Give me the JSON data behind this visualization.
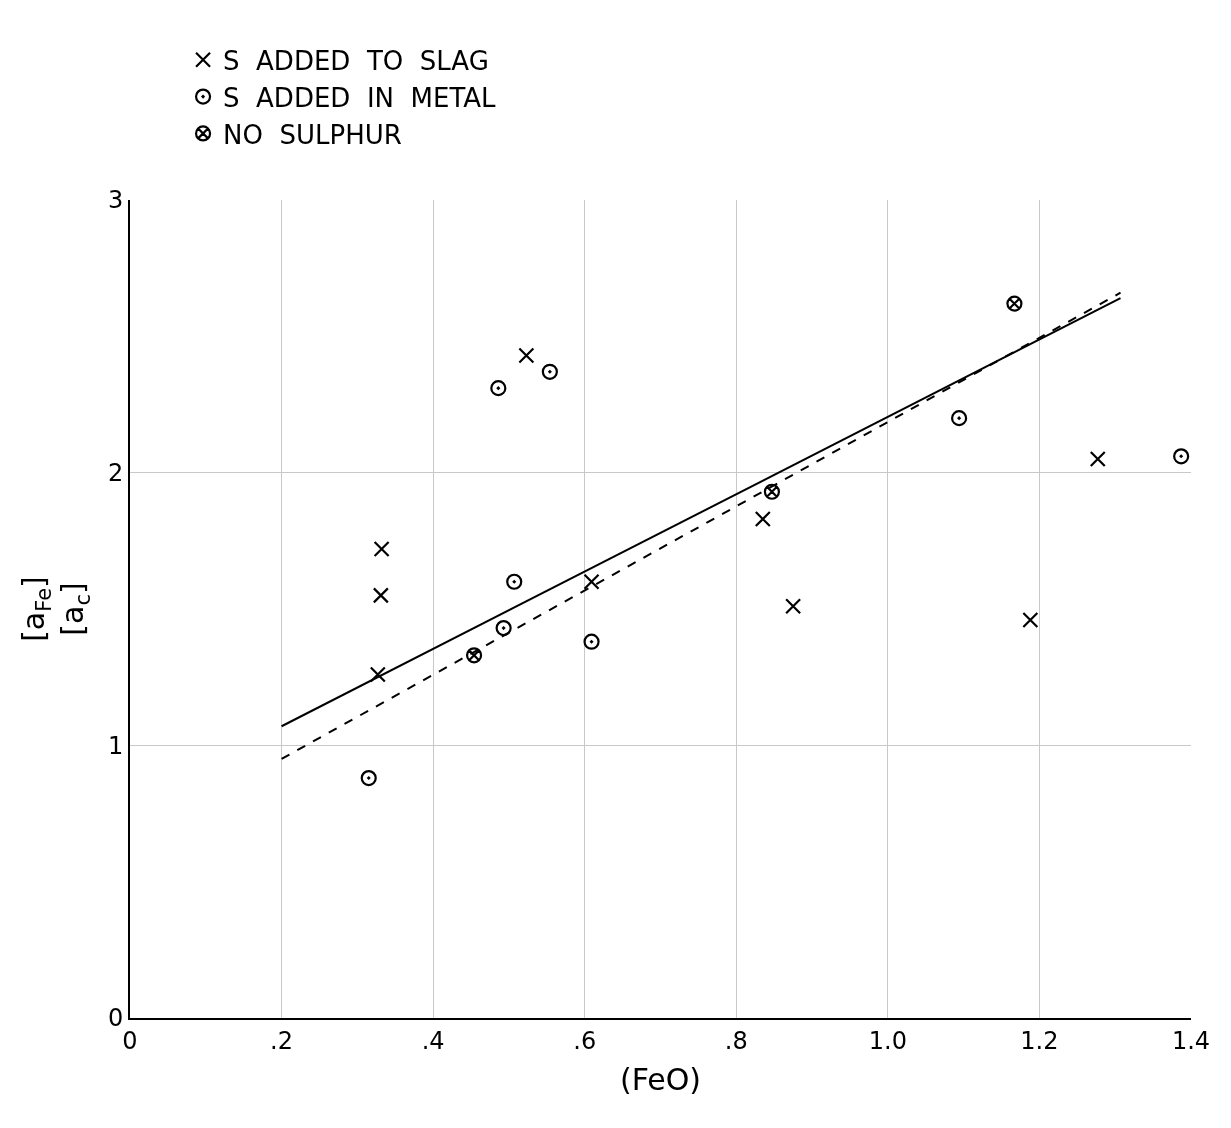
{
  "chart_data": {
    "type": "scatter",
    "xlabel": "(FeO)",
    "ylabel": "[a$_{Fe}$]\n[a$_{c}$]",
    "xlim": [
      0,
      1.4
    ],
    "ylim": [
      0,
      3
    ],
    "xticks": [
      0,
      {
        "value": 0.2,
        "label": ".2"
      },
      {
        "value": 0.4,
        "label": ".4"
      },
      {
        "value": 0.6,
        "label": ".6"
      },
      {
        "value": 0.8,
        "label": ".8"
      },
      {
        "value": 1.0,
        "label": "1.0"
      },
      1.2,
      1.4
    ],
    "yticks": [
      0,
      1,
      2,
      3
    ],
    "grid": true,
    "legend": "top left",
    "series": [
      {
        "name": "S  ADDED  TO  SLAG",
        "color": "#000000",
        "marker": "cross",
        "x": [
          0.332,
          0.331,
          0.327,
          0.523,
          0.609,
          0.835,
          0.875,
          1.188,
          1.277
        ],
        "values": [
          1.72,
          1.55,
          1.26,
          2.43,
          1.6,
          1.83,
          1.51,
          1.46,
          2.05
        ]
      },
      {
        "name": "S  ADDED  IN  METAL",
        "color": "#000000",
        "marker": "circle",
        "x": [
          0.315,
          0.486,
          0.554,
          0.507,
          0.493,
          0.609,
          1.094,
          1.387
        ],
        "values": [
          0.88,
          2.31,
          2.37,
          1.6,
          1.43,
          1.38,
          2.2,
          2.06
        ]
      },
      {
        "name": "NO  SULPHUR",
        "color": "#000000",
        "x": [
          0.454,
          0.847,
          1.167
        ],
        "values": [
          1.33,
          1.93,
          2.62
        ]
      },
      {
        "type": "line",
        "color": "#000000",
        "line_style": "solid",
        "x": [
          0.2,
          1.307
        ],
        "values": [
          1.07,
          2.64
        ]
      },
      {
        "type": "line",
        "color": "#000000",
        "line_style": "dashed",
        "x": [
          0.2,
          1.307
        ],
        "values": [
          0.95,
          2.66
        ]
      }
    ]
  }
}
